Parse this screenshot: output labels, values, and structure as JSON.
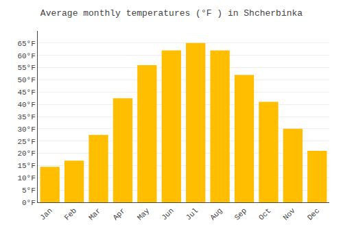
{
  "chart_data": {
    "type": "bar",
    "title": "Average monthly temperatures (°F ) in Shcherbinka",
    "categories": [
      "Jan",
      "Feb",
      "Mar",
      "Apr",
      "May",
      "Jun",
      "Jul",
      "Aug",
      "Sep",
      "Oct",
      "Nov",
      "Dec"
    ],
    "values": [
      14.5,
      17,
      27.5,
      42.5,
      56,
      62,
      65,
      62,
      52,
      41,
      30,
      21
    ],
    "color": "#FFBF00",
    "ylim": [
      0,
      70
    ],
    "yticks": [
      {
        "value": 0,
        "label": "0°F"
      },
      {
        "value": 5,
        "label": "5°F"
      },
      {
        "value": 10,
        "label": "10°F"
      },
      {
        "value": 15,
        "label": "15°F"
      },
      {
        "value": 20,
        "label": "20°F"
      },
      {
        "value": 25,
        "label": "25°F"
      },
      {
        "value": 30,
        "label": "30°F"
      },
      {
        "value": 35,
        "label": "35°F"
      },
      {
        "value": 40,
        "label": "40°F"
      },
      {
        "value": 45,
        "label": "45°F"
      },
      {
        "value": 50,
        "label": "50°F"
      },
      {
        "value": 55,
        "label": "55°F"
      },
      {
        "value": 60,
        "label": "60°F"
      },
      {
        "value": 65,
        "label": "65°F"
      }
    ],
    "grid": true
  }
}
